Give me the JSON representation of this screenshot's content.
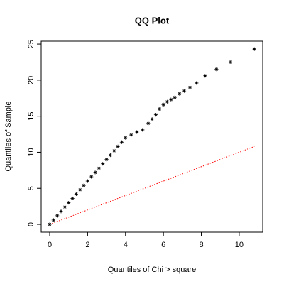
{
  "chart_data": {
    "type": "scatter",
    "title": "QQ Plot",
    "x_label": "Quantiles of Chi > square",
    "y_label": "Quantiles of Sample",
    "color": "#000000",
    "x": [
      0,
      0.2,
      0.4,
      0.6,
      0.8,
      1.0,
      1.2,
      1.4,
      1.6,
      1.8,
      2.0,
      2.2,
      2.4,
      2.6,
      2.8,
      3.0,
      3.2,
      3.4,
      3.6,
      3.8,
      4.0,
      4.3,
      4.6,
      4.9,
      5.2,
      5.4,
      5.6,
      5.8,
      6.0,
      6.2,
      6.4,
      6.6,
      6.85,
      7.1,
      7.4,
      7.75,
      8.2,
      8.8,
      9.55,
      10.8
    ],
    "values": [
      0,
      0.6,
      1.2,
      1.8,
      2.4,
      3.0,
      3.6,
      4.2,
      4.8,
      5.4,
      6.0,
      6.6,
      7.2,
      7.8,
      8.4,
      9.0,
      9.6,
      10.2,
      10.8,
      11.4,
      12.0,
      12.4,
      12.8,
      13.1,
      14.0,
      14.6,
      15.2,
      16.0,
      16.6,
      17.0,
      17.3,
      17.6,
      18.1,
      18.5,
      19.0,
      19.6,
      20.6,
      21.5,
      22.5,
      24.3
    ],
    "reference_line": {
      "color": "#ff0000",
      "x": [
        0,
        10.8
      ],
      "y": [
        0,
        10.8
      ]
    },
    "xlim": [
      -0.45,
      11.24
    ],
    "ylim": [
      -1.08,
      25.4
    ],
    "xticks": [
      0,
      2,
      4,
      6,
      8,
      10
    ],
    "yticks": [
      0,
      5,
      10,
      15,
      20,
      25
    ]
  }
}
